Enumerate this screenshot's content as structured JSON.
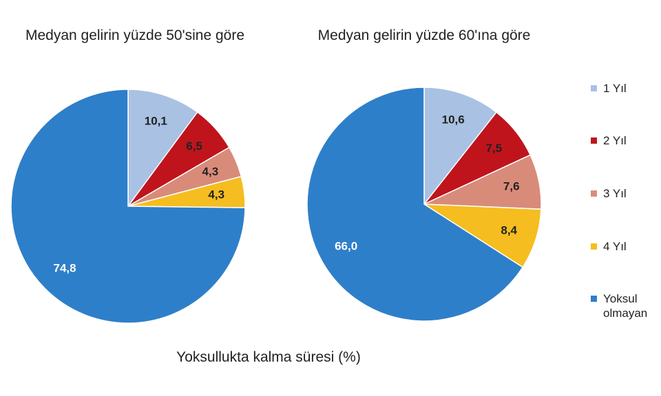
{
  "chart_data": [
    {
      "type": "pie",
      "title": "Medyan gelirin yüzde 50'sine göre",
      "categories": [
        "1 Yıl",
        "2 Yıl",
        "3 Yıl",
        "4 Yıl",
        "Yoksul olmayan"
      ],
      "values": [
        10.1,
        6.5,
        4.3,
        4.3,
        74.8
      ],
      "value_labels": [
        "10,1",
        "6,5",
        "4,3",
        "4,3",
        "74,8"
      ],
      "colors": [
        "#a9c1e3",
        "#c0141c",
        "#d98b7a",
        "#f5bd1f",
        "#2e7fc9"
      ]
    },
    {
      "type": "pie",
      "title": "Medyan gelirin yüzde 60'ına göre",
      "categories": [
        "1 Yıl",
        "2 Yıl",
        "3 Yıl",
        "4 Yıl",
        "Yoksul olmayan"
      ],
      "values": [
        10.6,
        7.5,
        7.6,
        8.4,
        66.0
      ],
      "value_labels": [
        "10,6",
        "7,5",
        "7,6",
        "8,4",
        "66,0"
      ],
      "colors": [
        "#a9c1e3",
        "#c0141c",
        "#d98b7a",
        "#f5bd1f",
        "#2e7fc9"
      ]
    }
  ],
  "caption": "Yoksullukta kalma süresi (%)"
}
